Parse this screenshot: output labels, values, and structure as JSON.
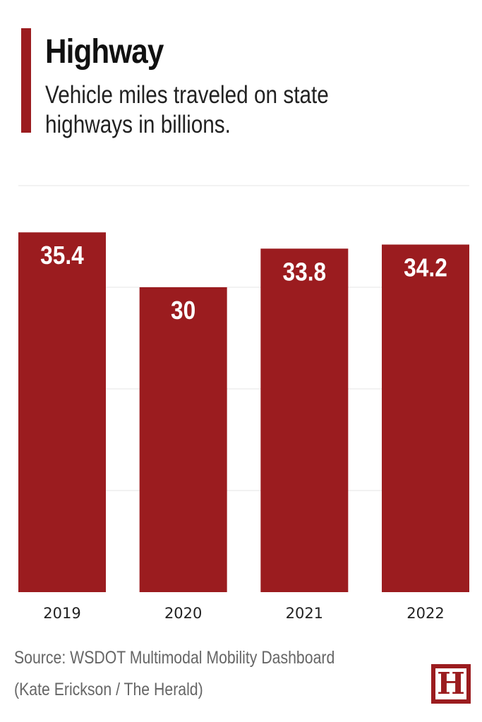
{
  "header": {
    "title": "Highway",
    "subtitle": "Vehicle miles traveled on state highways in billions."
  },
  "footer": {
    "source": "Source: WSDOT Multimodal Mobility Dashboard",
    "credit": "(Kate Erickson / The Herald)",
    "logo_text": "H"
  },
  "colors": {
    "bar": "#9b1c1f",
    "accent": "#9b1c1f",
    "grid": "#e6e6e6"
  },
  "chart_data": {
    "type": "bar",
    "title": "Highway",
    "subtitle": "Vehicle miles traveled on state highways in billions.",
    "categories": [
      "2019",
      "2020",
      "2021",
      "2022"
    ],
    "values": [
      35.4,
      30,
      33.8,
      34.2
    ],
    "value_labels": [
      "35.4",
      "30",
      "33.8",
      "34.2"
    ],
    "ylim": [
      0,
      40
    ],
    "grid_step": 10,
    "grid": true,
    "xlabel": "",
    "ylabel": ""
  }
}
